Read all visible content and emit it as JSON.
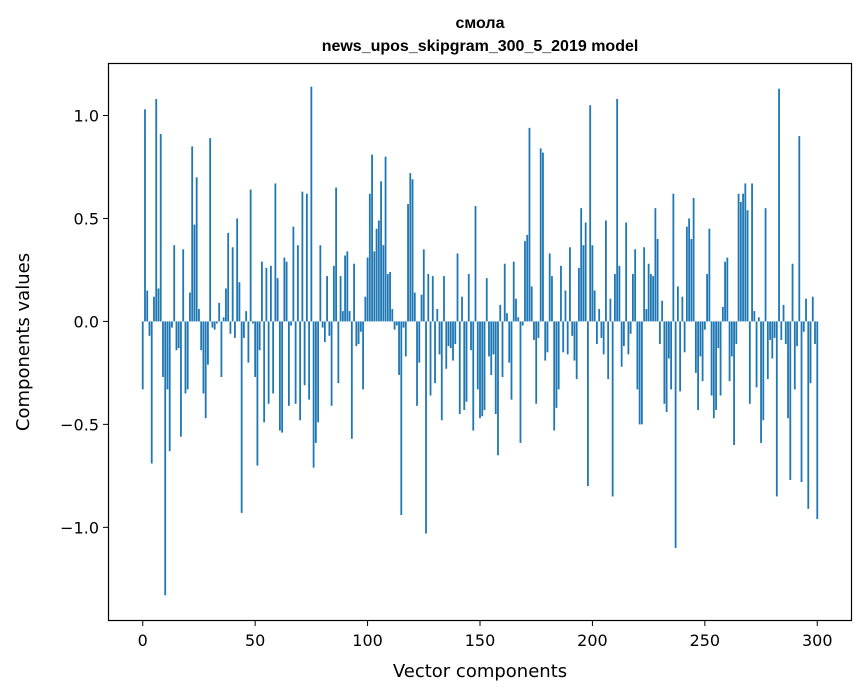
{
  "chart_data": {
    "type": "bar",
    "title": "смола",
    "subtitle": "news_upos_skipgram_300_5_2019 model",
    "xlabel": "Vector components",
    "ylabel": "Components values",
    "xlim": [
      -15,
      315
    ],
    "ylim": [
      -1.45,
      1.25
    ],
    "xticks": [
      0,
      50,
      100,
      150,
      200,
      250,
      300
    ],
    "xtick_labels": [
      "0",
      "50",
      "100",
      "150",
      "200",
      "250",
      "300"
    ],
    "yticks": [
      1.0,
      0.5,
      0.0,
      -0.5,
      -1.0
    ],
    "ytick_labels": [
      "1.0",
      "0.5",
      "0.0",
      "−0.5",
      "−1.0"
    ],
    "bar_color": "#1f77b4",
    "grid": false,
    "values": [
      -0.33,
      1.03,
      0.15,
      -0.07,
      -0.69,
      0.12,
      1.08,
      0.16,
      0.91,
      -0.27,
      -1.33,
      -0.33,
      -0.63,
      -0.03,
      0.37,
      -0.14,
      -0.13,
      -0.56,
      0.35,
      -0.35,
      -0.33,
      0.14,
      0.85,
      0.47,
      0.7,
      0.06,
      -0.14,
      -0.35,
      -0.47,
      -0.21,
      0.89,
      -0.03,
      -0.04,
      -0.01,
      0.09,
      -0.27,
      0.02,
      0.16,
      0.43,
      -0.06,
      0.36,
      -0.08,
      0.5,
      0.19,
      -0.93,
      -0.08,
      0.05,
      -0.2,
      0.64,
      -0.01,
      -0.27,
      -0.7,
      -0.14,
      0.29,
      -0.49,
      0.26,
      -0.4,
      0.27,
      -0.35,
      0.67,
      0.21,
      -0.53,
      -0.54,
      0.31,
      0.29,
      -0.41,
      -0.02,
      0.46,
      -0.4,
      0.37,
      -0.48,
      0.63,
      -0.31,
      0.62,
      -0.38,
      1.14,
      -0.71,
      -0.59,
      -0.49,
      0.37,
      -0.03,
      -0.1,
      0.22,
      -0.07,
      -0.41,
      0.27,
      0.65,
      -0.3,
      0.22,
      0.05,
      0.32,
      0.34,
      0.05,
      -0.57,
      0.28,
      -0.12,
      -0.11,
      -0.05,
      -0.33,
      0.12,
      0.31,
      0.62,
      0.81,
      0.34,
      0.45,
      0.49,
      0.68,
      0.37,
      0.8,
      0.23,
      0.24,
      0.06,
      -0.04,
      -0.02,
      -0.26,
      -0.94,
      -0.03,
      -0.17,
      0.57,
      0.72,
      0.69,
      0.14,
      -0.41,
      -0.2,
      0.13,
      0.35,
      -1.03,
      0.23,
      -0.36,
      0.22,
      -0.3,
      0.06,
      -0.16,
      -0.48,
      0.22,
      -0.23,
      -0.12,
      -0.13,
      -0.19,
      -0.11,
      0.33,
      -0.45,
      0.12,
      -0.43,
      -0.39,
      0.23,
      -0.14,
      -0.53,
      0.56,
      -0.33,
      -0.47,
      -0.46,
      -0.43,
      0.21,
      -0.17,
      -0.26,
      -0.16,
      -0.45,
      -0.65,
      0.08,
      -0.27,
      0.28,
      0.04,
      -0.2,
      -0.38,
      0.29,
      0.11,
      0.02,
      -0.59,
      -0.02,
      0.39,
      0.42,
      0.94,
      0.17,
      -0.09,
      -0.4,
      -0.08,
      0.84,
      0.82,
      -0.19,
      -0.15,
      0.33,
      0.22,
      -0.53,
      -0.42,
      -0.33,
      0.27,
      -0.15,
      0.15,
      -0.16,
      0.36,
      -0.07,
      -0.19,
      -0.28,
      0.26,
      0.55,
      0.37,
      0.48,
      -0.8,
      1.05,
      0.37,
      0.15,
      -0.11,
      0.06,
      -0.08,
      -0.16,
      0.49,
      -0.28,
      0.11,
      -0.85,
      0.23,
      1.08,
      0.27,
      -0.22,
      -0.12,
      0.48,
      -0.16,
      -0.06,
      0.23,
      0.35,
      -0.33,
      -0.5,
      -0.5,
      0.36,
      0.06,
      0.28,
      0.23,
      0.22,
      0.55,
      0.4,
      -0.11,
      0.1,
      -0.4,
      -0.44,
      -0.18,
      -0.33,
      0.62,
      -1.1,
      0.17,
      -0.34,
      0.12,
      -0.15,
      0.46,
      0.5,
      0.4,
      0.6,
      -0.25,
      -0.43,
      -0.17,
      -0.29,
      -0.04,
      0.23,
      0.45,
      -0.36,
      -0.47,
      -0.43,
      -0.13,
      -0.36,
      0.07,
      0.29,
      0.31,
      -0.29,
      -0.17,
      -0.6,
      -0.11,
      0.62,
      0.58,
      0.62,
      0.67,
      0.54,
      -0.4,
      0.67,
      0.05,
      -0.32,
      0.02,
      -0.59,
      -0.48,
      0.55,
      -0.28,
      -0.09,
      -0.18,
      -0.08,
      -0.85,
      1.13,
      -0.09,
      0.08,
      -0.11,
      -0.47,
      -0.77,
      0.28,
      -0.33,
      -0.12,
      0.9,
      -0.78,
      -0.05,
      0.11,
      -0.91,
      -0.3,
      0.12,
      -0.11,
      -0.96
    ]
  }
}
